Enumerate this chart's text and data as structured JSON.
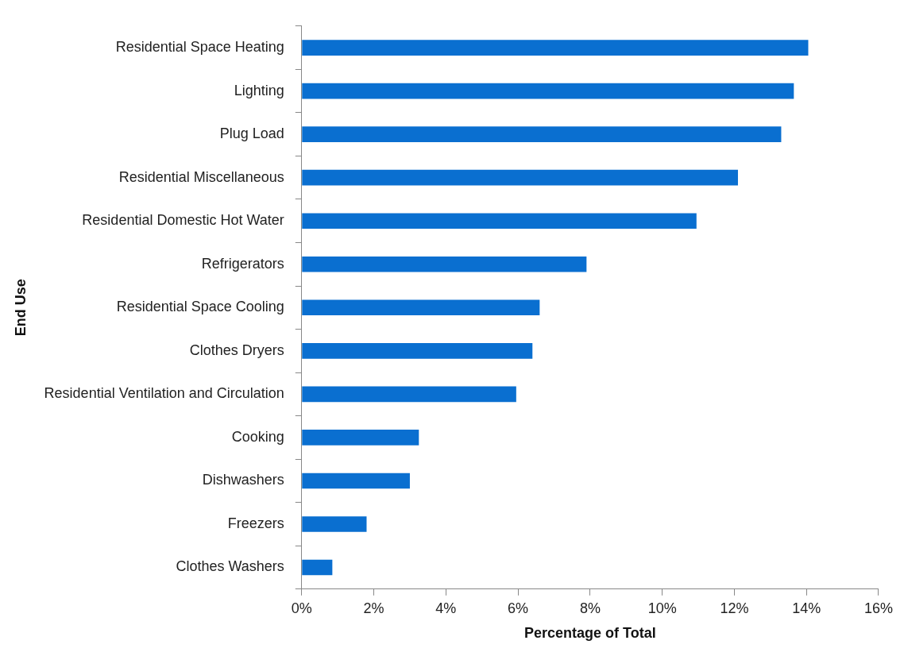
{
  "chart_data": {
    "type": "bar",
    "orientation": "horizontal",
    "xlabel": "Percentage of Total",
    "ylabel": "End Use",
    "categories": [
      "Residential Space Heating",
      "Lighting",
      "Plug Load",
      "Residential Miscellaneous",
      "Residential Domestic Hot Water",
      "Refrigerators",
      "Residential Space Cooling",
      "Clothes Dryers",
      "Residential Ventilation and Circulation",
      "Cooking",
      "Dishwashers",
      "Freezers",
      "Clothes Washers"
    ],
    "values": [
      14.05,
      13.65,
      13.3,
      12.1,
      10.95,
      7.9,
      6.6,
      6.4,
      5.95,
      3.25,
      3.0,
      1.8,
      0.85
    ],
    "color": "#0a6fd0",
    "xlim": [
      0,
      16
    ],
    "xticks": [
      {
        "value": 0,
        "label": "0%"
      },
      {
        "value": 2,
        "label": "2%"
      },
      {
        "value": 4,
        "label": "4%"
      },
      {
        "value": 6,
        "label": "6%"
      },
      {
        "value": 8,
        "label": "8%"
      },
      {
        "value": 10,
        "label": "10%"
      },
      {
        "value": 12,
        "label": "12%"
      },
      {
        "value": 14,
        "label": "14%"
      },
      {
        "value": 16,
        "label": "16%"
      }
    ],
    "grid": false,
    "legend": false
  }
}
